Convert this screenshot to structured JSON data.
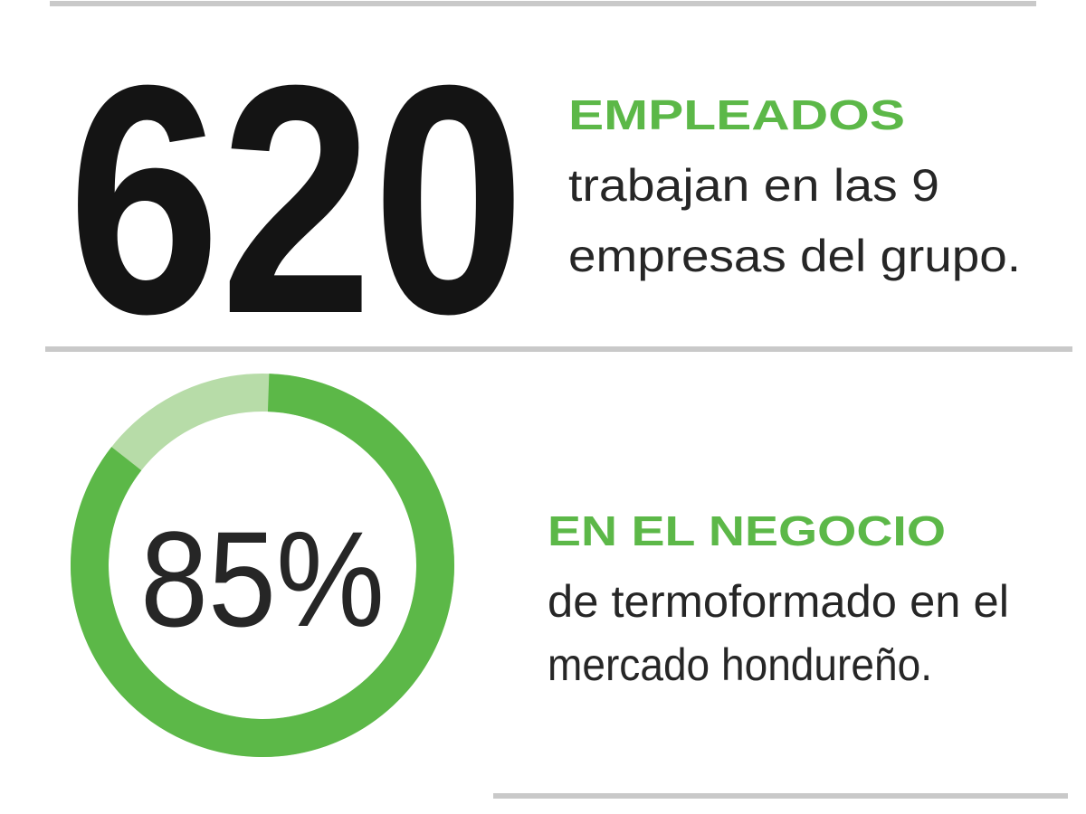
{
  "stat_employees": {
    "number": "620",
    "heading": "EMPLEADOS",
    "lines": [
      "trabajan en las 9",
      "empresas del grupo."
    ]
  },
  "stat_market": {
    "value": 85,
    "value_label": "85%",
    "heading": "EN EL NEGOCIO",
    "lines": [
      "de termoformado en el",
      "mercado hondureño."
    ]
  }
}
